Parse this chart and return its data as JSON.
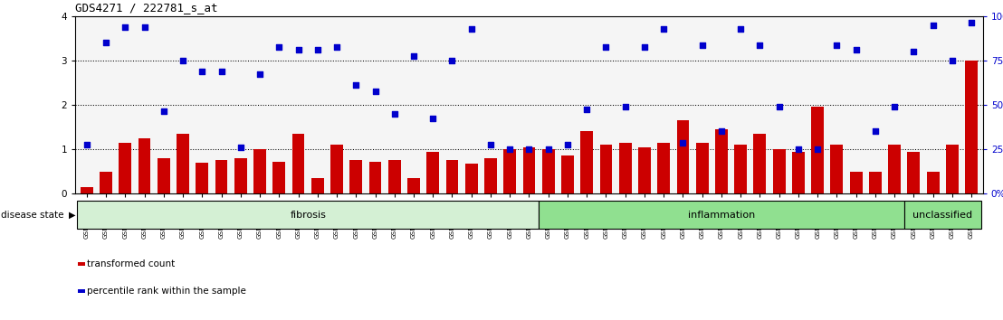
{
  "title": "GDS4271 / 222781_s_at",
  "samples": [
    "GSM380382",
    "GSM380383",
    "GSM380384",
    "GSM380385",
    "GSM380386",
    "GSM380387",
    "GSM380388",
    "GSM380389",
    "GSM380390",
    "GSM380391",
    "GSM380392",
    "GSM380393",
    "GSM380394",
    "GSM380395",
    "GSM380396",
    "GSM380397",
    "GSM380398",
    "GSM380399",
    "GSM380400",
    "GSM380401",
    "GSM380402",
    "GSM380403",
    "GSM380404",
    "GSM380405",
    "GSM380406",
    "GSM380407",
    "GSM380408",
    "GSM380409",
    "GSM380410",
    "GSM380411",
    "GSM380412",
    "GSM380413",
    "GSM380414",
    "GSM380415",
    "GSM380416",
    "GSM380417",
    "GSM380418",
    "GSM380419",
    "GSM380420",
    "GSM380421",
    "GSM380422",
    "GSM380423",
    "GSM380424",
    "GSM380425",
    "GSM380426",
    "GSM380427",
    "GSM380428"
  ],
  "red_bars": [
    0.15,
    0.5,
    1.15,
    1.25,
    0.8,
    1.35,
    0.7,
    0.75,
    0.8,
    1.0,
    0.72,
    1.35,
    0.35,
    1.1,
    0.75,
    0.72,
    0.75,
    0.35,
    0.95,
    0.75,
    0.68,
    0.8,
    1.0,
    1.05,
    1.0,
    0.85,
    1.4,
    1.1,
    1.15,
    1.05,
    1.15,
    1.65,
    1.15,
    1.45,
    1.1,
    1.35,
    1.0,
    0.95,
    1.95,
    1.1,
    0.5,
    0.5,
    1.1,
    0.95,
    0.5,
    1.1,
    3.0
  ],
  "blue_dots": [
    1.1,
    3.4,
    3.75,
    3.75,
    1.85,
    3.0,
    2.75,
    2.75,
    1.05,
    2.7,
    3.3,
    3.25,
    3.25,
    3.3,
    2.45,
    2.3,
    1.8,
    3.1,
    1.7,
    3.0,
    3.7,
    1.1,
    1.0,
    1.0,
    1.0,
    1.1,
    1.9,
    3.3,
    1.95,
    3.3,
    3.7,
    1.15,
    3.35,
    1.4,
    3.7,
    3.35,
    1.95,
    1.0,
    1.0,
    3.35,
    3.25,
    1.4,
    1.95,
    3.2,
    3.8,
    3.0,
    3.85
  ],
  "group_configs": [
    {
      "label": "fibrosis",
      "start": 0,
      "end": 24,
      "color": "#d4f0d4"
    },
    {
      "label": "inflammation",
      "start": 24,
      "end": 43,
      "color": "#90e090"
    },
    {
      "label": "unclassified",
      "start": 43,
      "end": 47,
      "color": "#90e090"
    }
  ],
  "ylim_left": [
    0,
    4
  ],
  "ylim_right": [
    0,
    100
  ],
  "yticks_left": [
    0,
    1,
    2,
    3,
    4
  ],
  "yticks_right": [
    0,
    25,
    50,
    75,
    100
  ],
  "dotted_lines": [
    1,
    2,
    3
  ],
  "bar_color": "#cc0000",
  "dot_color": "#0000cc",
  "bar_width": 0.65,
  "legend_red": "transformed count",
  "legend_blue": "percentile rank within the sample",
  "disease_state_label": "disease state"
}
